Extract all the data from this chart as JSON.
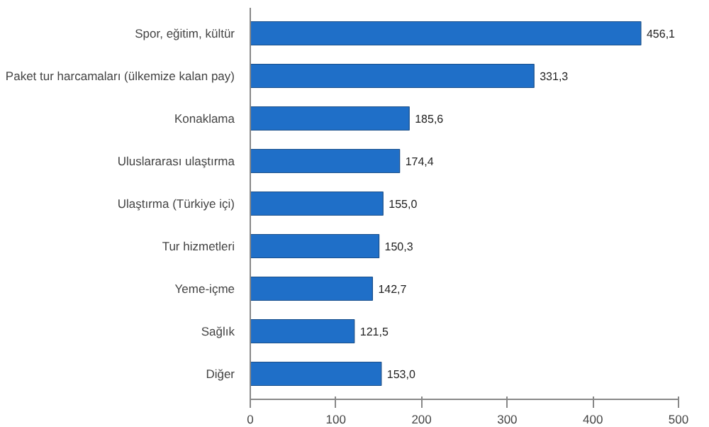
{
  "chart_data": {
    "type": "bar",
    "orientation": "horizontal",
    "categories": [
      "Spor, eğitim, kültür",
      "Paket tur harcamaları (ülkemize kalan pay)",
      "Konaklama",
      "Uluslararası ulaştırma",
      "Ulaştırma (Türkiye içi)",
      "Tur hizmetleri",
      "Yeme-içme",
      "Sağlık",
      "Diğer"
    ],
    "values": [
      456.1,
      331.3,
      185.6,
      174.4,
      155.0,
      150.3,
      142.7,
      121.5,
      153.0
    ],
    "value_labels": [
      "456,1",
      "331,3",
      "185,6",
      "174,4",
      "155,0",
      "150,3",
      "142,7",
      "121,5",
      "153,0"
    ],
    "color": "#1f6fc8",
    "xlim": [
      0,
      500
    ],
    "xticks": [
      0,
      100,
      200,
      300,
      400,
      500
    ],
    "grid": false
  }
}
